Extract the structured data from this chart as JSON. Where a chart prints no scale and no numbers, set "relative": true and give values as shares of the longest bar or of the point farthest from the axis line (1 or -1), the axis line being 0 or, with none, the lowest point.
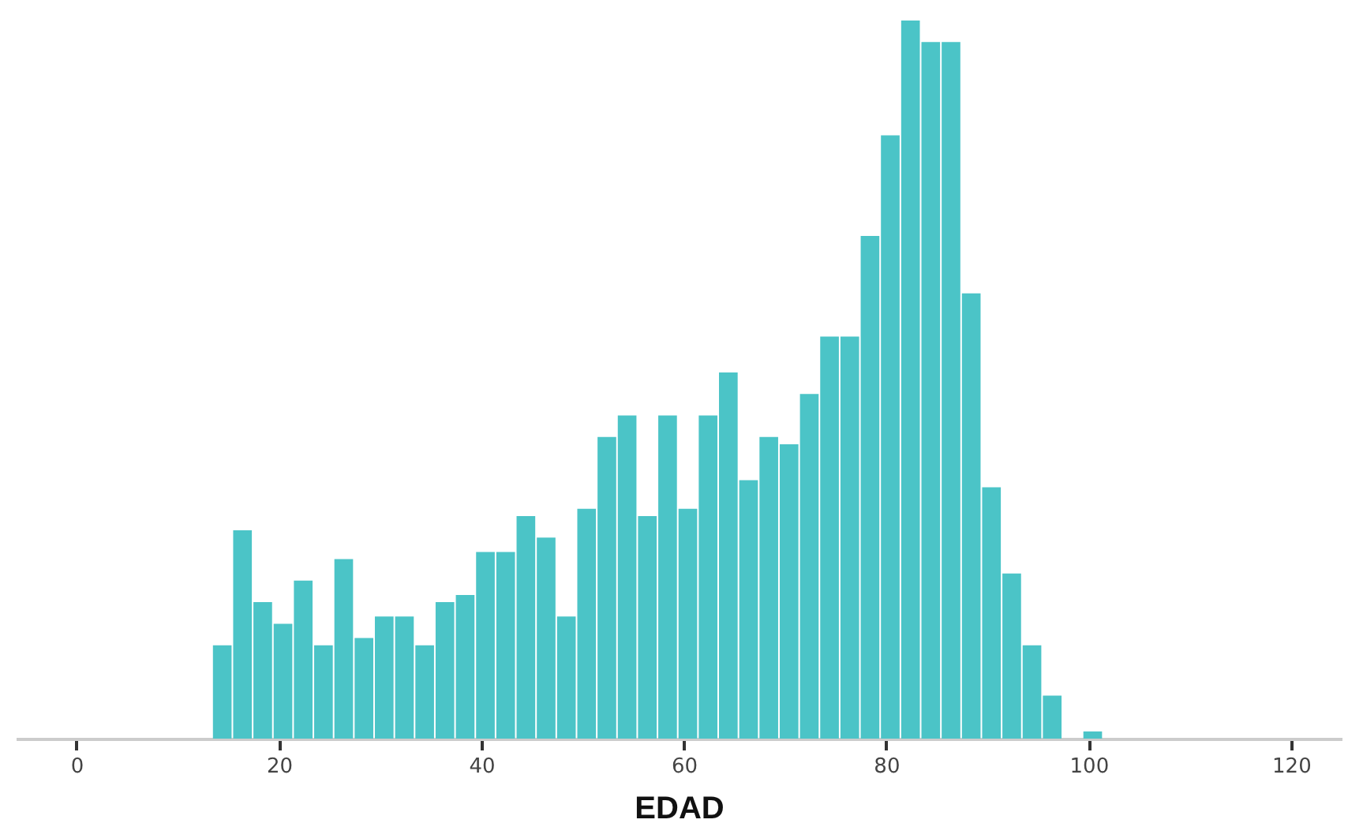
{
  "chart_data": {
    "type": "bar",
    "xlabel": "EDAD",
    "relative": true,
    "color": "#4bc4c7",
    "x": [
      14.4,
      16.4,
      18.4,
      20.4,
      22.4,
      24.4,
      26.4,
      28.4,
      30.4,
      32.4,
      34.4,
      36.4,
      38.4,
      40.4,
      42.4,
      44.4,
      46.4,
      48.4,
      50.4,
      52.4,
      54.4,
      56.4,
      58.4,
      60.4,
      62.4,
      64.4,
      66.4,
      68.4,
      70.4,
      72.4,
      74.4,
      76.4,
      78.4,
      80.4,
      82.4,
      84.4,
      86.4,
      88.4,
      90.4,
      92.4,
      94.4,
      96.4,
      100.4
    ],
    "values": [
      0.13,
      0.29,
      0.19,
      0.16,
      0.22,
      0.13,
      0.25,
      0.14,
      0.17,
      0.17,
      0.13,
      0.19,
      0.2,
      0.26,
      0.26,
      0.31,
      0.28,
      0.17,
      0.32,
      0.42,
      0.45,
      0.31,
      0.45,
      0.32,
      0.45,
      0.51,
      0.36,
      0.42,
      0.41,
      0.48,
      0.56,
      0.56,
      0.7,
      0.84,
      1,
      0.97,
      0.97,
      0.62,
      0.35,
      0.23,
      0.13,
      0.06,
      0.01
    ],
    "xlim": [
      -6,
      125
    ],
    "xticks": [
      0,
      20,
      40,
      60,
      80,
      100,
      120
    ]
  }
}
